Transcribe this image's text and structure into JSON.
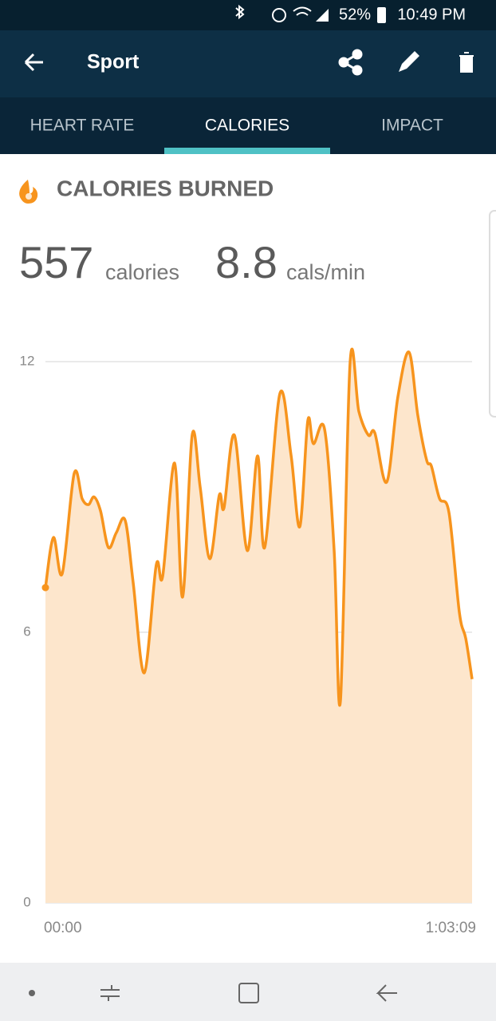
{
  "status_bar": {
    "battery": "52%",
    "time": "10:49 PM"
  },
  "app_bar": {
    "title": "Sport"
  },
  "tabs": [
    "HEART RATE",
    "CALORIES",
    "IMPACT"
  ],
  "section": {
    "title": "CALORIES BURNED"
  },
  "stats": [
    {
      "value": "557",
      "unit": "calories"
    },
    {
      "value": "8.8",
      "unit": "cals/min"
    }
  ],
  "chart_data": {
    "type": "area",
    "x": [
      0,
      71,
      149,
      255,
      326,
      382,
      432,
      489,
      559,
      630,
      708,
      779,
      878,
      984,
      1041,
      1147,
      1218,
      1303,
      1374,
      1459,
      1544,
      1586,
      1678,
      1792,
      1884,
      1947,
      2082,
      2181,
      2259,
      2330,
      2380,
      2479,
      2564,
      2620,
      2705,
      2783,
      2868,
      2925,
      3031,
      3130,
      3229,
      3307,
      3385,
      3428,
      3499,
      3584,
      3676,
      3733,
      3789
    ],
    "series": [
      {
        "color": "#f7941d",
        "fill": "#fde6cc",
        "values": [
          6.99,
          8.1,
          7.3,
          9.52,
          8.96,
          8.83,
          9.0,
          8.69,
          7.88,
          8.21,
          8.48,
          7.1,
          5.1,
          7.49,
          7.24,
          9.75,
          6.78,
          10.37,
          9.22,
          7.63,
          9.04,
          8.76,
          10.37,
          7.81,
          9.91,
          7.88,
          11.29,
          9.93,
          8.34,
          10.69,
          10.18,
          10.5,
          7.81,
          4.48,
          11.95,
          10.9,
          10.37,
          10.42,
          9.33,
          11.22,
          12.21,
          10.81,
          9.82,
          9.68,
          8.97,
          8.65,
          6.44,
          5.86,
          4.96
        ]
      }
    ],
    "xlim": [
      0,
      3789
    ],
    "xticks": [
      {
        "value": 0,
        "label": "00:00"
      },
      {
        "value": 3789,
        "label": "1:03:09"
      }
    ],
    "ylim": [
      0,
      12
    ],
    "yticks": [
      0,
      6,
      12
    ],
    "grid": true
  }
}
